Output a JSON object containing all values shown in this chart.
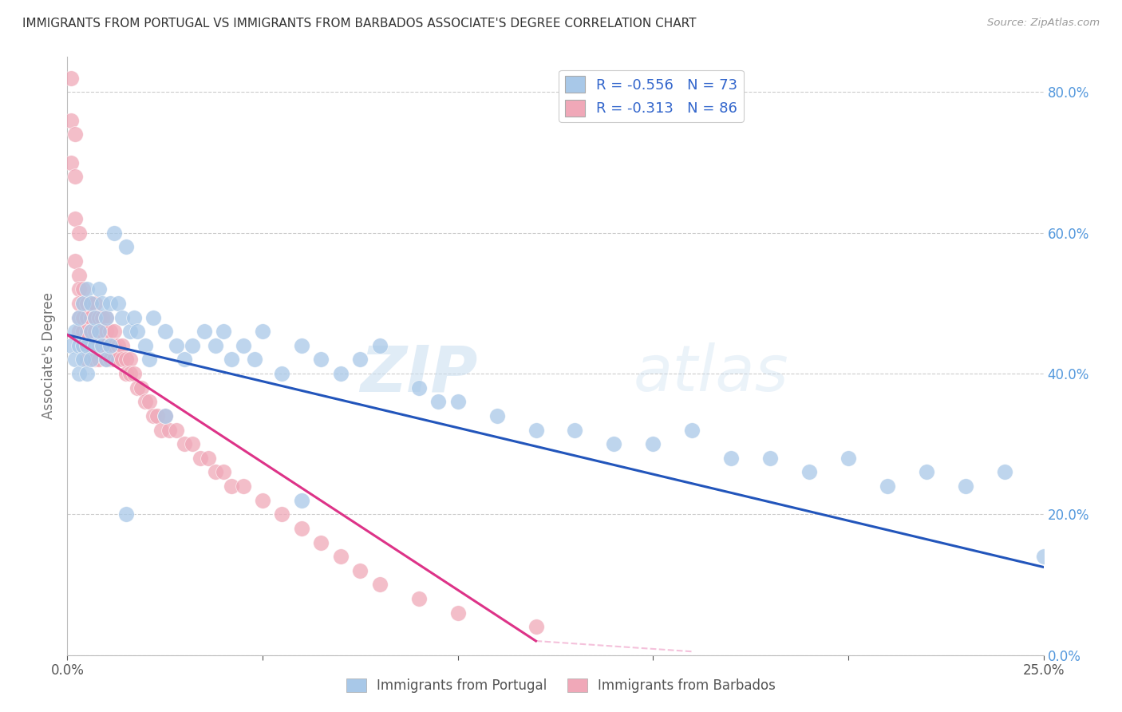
{
  "title": "IMMIGRANTS FROM PORTUGAL VS IMMIGRANTS FROM BARBADOS ASSOCIATE'S DEGREE CORRELATION CHART",
  "source": "Source: ZipAtlas.com",
  "ylabel": "Associate's Degree",
  "x_min": 0.0,
  "x_max": 0.25,
  "y_min": 0.0,
  "y_max": 0.85,
  "right_yticks": [
    0.0,
    0.2,
    0.4,
    0.6,
    0.8
  ],
  "right_yticklabels": [
    "0.0%",
    "20.0%",
    "40.0%",
    "60.0%",
    "80.0%"
  ],
  "xticks": [
    0.0,
    0.05,
    0.1,
    0.15,
    0.2,
    0.25
  ],
  "xticklabels": [
    "0.0%",
    "",
    "",
    "",
    "",
    "25.0%"
  ],
  "legend_r_portugal": "-0.556",
  "legend_n_portugal": "73",
  "legend_r_barbados": "-0.313",
  "legend_n_barbados": "86",
  "color_portugal": "#a8c8e8",
  "color_barbados": "#f0a8b8",
  "line_color_portugal": "#2255bb",
  "line_color_barbados": "#dd3388",
  "watermark_zip": "ZIP",
  "watermark_atlas": "atlas",
  "portugal_x": [
    0.001,
    0.002,
    0.002,
    0.003,
    0.003,
    0.003,
    0.004,
    0.004,
    0.004,
    0.005,
    0.005,
    0.005,
    0.006,
    0.006,
    0.006,
    0.007,
    0.007,
    0.008,
    0.008,
    0.009,
    0.009,
    0.01,
    0.01,
    0.011,
    0.011,
    0.012,
    0.013,
    0.014,
    0.015,
    0.016,
    0.017,
    0.018,
    0.02,
    0.021,
    0.022,
    0.025,
    0.028,
    0.03,
    0.032,
    0.035,
    0.038,
    0.04,
    0.042,
    0.045,
    0.048,
    0.05,
    0.055,
    0.06,
    0.065,
    0.07,
    0.075,
    0.08,
    0.09,
    0.095,
    0.1,
    0.11,
    0.12,
    0.13,
    0.14,
    0.15,
    0.16,
    0.17,
    0.18,
    0.19,
    0.2,
    0.21,
    0.22,
    0.23,
    0.24,
    0.25,
    0.015,
    0.025,
    0.06
  ],
  "portugal_y": [
    0.44,
    0.46,
    0.42,
    0.48,
    0.44,
    0.4,
    0.5,
    0.44,
    0.42,
    0.52,
    0.44,
    0.4,
    0.5,
    0.46,
    0.42,
    0.48,
    0.44,
    0.52,
    0.46,
    0.5,
    0.44,
    0.48,
    0.42,
    0.5,
    0.44,
    0.6,
    0.5,
    0.48,
    0.58,
    0.46,
    0.48,
    0.46,
    0.44,
    0.42,
    0.48,
    0.46,
    0.44,
    0.42,
    0.44,
    0.46,
    0.44,
    0.46,
    0.42,
    0.44,
    0.42,
    0.46,
    0.4,
    0.44,
    0.42,
    0.4,
    0.42,
    0.44,
    0.38,
    0.36,
    0.36,
    0.34,
    0.32,
    0.32,
    0.3,
    0.3,
    0.32,
    0.28,
    0.28,
    0.26,
    0.28,
    0.24,
    0.26,
    0.24,
    0.26,
    0.14,
    0.2,
    0.34,
    0.22
  ],
  "barbados_x": [
    0.001,
    0.001,
    0.001,
    0.002,
    0.002,
    0.002,
    0.002,
    0.003,
    0.003,
    0.003,
    0.003,
    0.003,
    0.003,
    0.004,
    0.004,
    0.004,
    0.004,
    0.004,
    0.005,
    0.005,
    0.005,
    0.005,
    0.005,
    0.006,
    0.006,
    0.006,
    0.006,
    0.007,
    0.007,
    0.007,
    0.007,
    0.007,
    0.008,
    0.008,
    0.008,
    0.008,
    0.009,
    0.009,
    0.009,
    0.01,
    0.01,
    0.01,
    0.01,
    0.011,
    0.011,
    0.011,
    0.012,
    0.012,
    0.012,
    0.013,
    0.013,
    0.014,
    0.014,
    0.015,
    0.015,
    0.016,
    0.016,
    0.017,
    0.018,
    0.019,
    0.02,
    0.021,
    0.022,
    0.023,
    0.024,
    0.025,
    0.026,
    0.028,
    0.03,
    0.032,
    0.034,
    0.036,
    0.038,
    0.04,
    0.042,
    0.045,
    0.05,
    0.055,
    0.06,
    0.065,
    0.07,
    0.075,
    0.08,
    0.09,
    0.1,
    0.12
  ],
  "barbados_y": [
    0.82,
    0.76,
    0.7,
    0.74,
    0.68,
    0.62,
    0.56,
    0.6,
    0.54,
    0.52,
    0.5,
    0.48,
    0.46,
    0.52,
    0.5,
    0.48,
    0.46,
    0.44,
    0.5,
    0.48,
    0.46,
    0.44,
    0.42,
    0.5,
    0.48,
    0.46,
    0.44,
    0.5,
    0.48,
    0.46,
    0.44,
    0.42,
    0.48,
    0.46,
    0.44,
    0.42,
    0.48,
    0.46,
    0.44,
    0.48,
    0.46,
    0.44,
    0.42,
    0.46,
    0.44,
    0.42,
    0.46,
    0.44,
    0.42,
    0.44,
    0.42,
    0.44,
    0.42,
    0.42,
    0.4,
    0.42,
    0.4,
    0.4,
    0.38,
    0.38,
    0.36,
    0.36,
    0.34,
    0.34,
    0.32,
    0.34,
    0.32,
    0.32,
    0.3,
    0.3,
    0.28,
    0.28,
    0.26,
    0.26,
    0.24,
    0.24,
    0.22,
    0.2,
    0.18,
    0.16,
    0.14,
    0.12,
    0.1,
    0.08,
    0.06,
    0.04
  ],
  "blue_line_x0": 0.0,
  "blue_line_y0": 0.455,
  "blue_line_x1": 0.25,
  "blue_line_y1": 0.125,
  "pink_line_x0": 0.0,
  "pink_line_y0": 0.455,
  "pink_line_x1": 0.12,
  "pink_line_y1": 0.02
}
